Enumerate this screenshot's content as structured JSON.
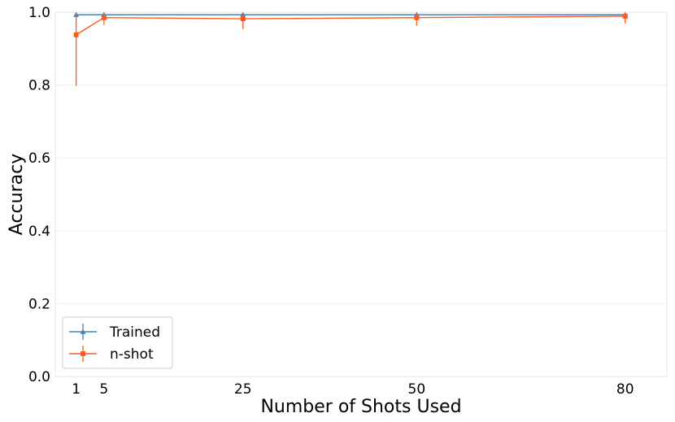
{
  "chart_data": {
    "type": "line",
    "xlabel": "Number of Shots Used",
    "ylabel": "Accuracy",
    "xlim": [
      -2,
      86
    ],
    "ylim": [
      0,
      1.0
    ],
    "xticks": [
      1,
      5,
      25,
      50,
      80
    ],
    "yticks": [
      0.0,
      0.2,
      0.4,
      0.6,
      0.8,
      1.0
    ],
    "grid": "horizontal-light",
    "legend": "lower-left",
    "x": [
      1,
      5,
      25,
      50,
      80
    ],
    "series": [
      {
        "name": "Trained",
        "color": "#4682b4",
        "marker": "triangle",
        "values": [
          0.993,
          0.993,
          0.993,
          0.993,
          0.993
        ],
        "err_low": [
          0.003,
          0.003,
          0.003,
          0.003,
          0.003
        ],
        "err_high": [
          0.003,
          0.003,
          0.003,
          0.003,
          0.003
        ]
      },
      {
        "name": "n-shot",
        "color": "#ff5a1f",
        "marker": "square",
        "values": [
          0.938,
          0.985,
          0.982,
          0.985,
          0.989
        ],
        "err_low": [
          0.14,
          0.02,
          0.028,
          0.022,
          0.02
        ],
        "err_high": [
          0.06,
          0.01,
          0.01,
          0.01,
          0.01
        ]
      }
    ]
  }
}
